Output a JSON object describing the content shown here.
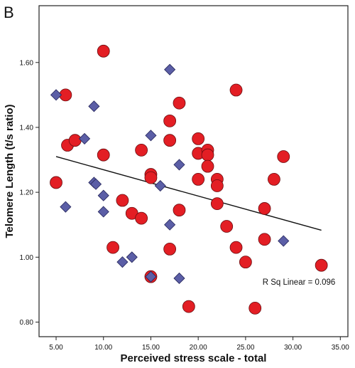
{
  "panel_label": "B",
  "chart_data": {
    "type": "scatter",
    "title": "",
    "xlabel": "Perceived stress scale - total",
    "ylabel": "Telomere Length (t/s ratio)",
    "xlim": [
      3.2,
      35.8
    ],
    "ylim": [
      0.755,
      1.775
    ],
    "x_ticks": [
      5,
      10,
      15,
      20,
      25,
      30,
      35
    ],
    "x_tick_labels": [
      "5.00",
      "10.00",
      "15.00",
      "20.00",
      "25.00",
      "30.00",
      "35.00"
    ],
    "y_ticks": [
      0.8,
      1.0,
      1.2,
      1.4,
      1.6
    ],
    "y_tick_labels": [
      "0.80",
      "1.00",
      "1.20",
      "1.40",
      "1.60"
    ],
    "grid": false,
    "legend": "none",
    "series": [
      {
        "marker": "circle",
        "color": "#e31e24",
        "points": [
          [
            5,
            1.23
          ],
          [
            6,
            1.5
          ],
          [
            6.2,
            1.345
          ],
          [
            7,
            1.36
          ],
          [
            10,
            1.635
          ],
          [
            10,
            1.315
          ],
          [
            11,
            1.03
          ],
          [
            12,
            1.175
          ],
          [
            13,
            1.135
          ],
          [
            14,
            1.33
          ],
          [
            14,
            1.12
          ],
          [
            15,
            1.255
          ],
          [
            15,
            1.245
          ],
          [
            15,
            0.94
          ],
          [
            17,
            1.42
          ],
          [
            17,
            1.36
          ],
          [
            17,
            1.025
          ],
          [
            18,
            1.475
          ],
          [
            18,
            1.145
          ],
          [
            19,
            0.848
          ],
          [
            20,
            1.365
          ],
          [
            20,
            1.32
          ],
          [
            20,
            1.24
          ],
          [
            21,
            1.33
          ],
          [
            21,
            1.315
          ],
          [
            21,
            1.28
          ],
          [
            22,
            1.24
          ],
          [
            22,
            1.22
          ],
          [
            22,
            1.165
          ],
          [
            23,
            1.095
          ],
          [
            24,
            1.515
          ],
          [
            24,
            1.03
          ],
          [
            25,
            0.985
          ],
          [
            26,
            0.843
          ],
          [
            27,
            1.15
          ],
          [
            27,
            1.055
          ],
          [
            28,
            1.24
          ],
          [
            29,
            1.31
          ],
          [
            33,
            0.975
          ]
        ]
      },
      {
        "marker": "diamond",
        "color": "#5b5ea6",
        "points": [
          [
            5,
            1.5
          ],
          [
            6,
            1.155
          ],
          [
            8,
            1.365
          ],
          [
            9,
            1.465
          ],
          [
            9,
            1.23
          ],
          [
            9.2,
            1.225
          ],
          [
            10,
            1.19
          ],
          [
            10,
            1.14
          ],
          [
            12,
            0.985
          ],
          [
            13,
            1.0
          ],
          [
            15,
            1.375
          ],
          [
            15,
            0.94
          ],
          [
            16,
            1.22
          ],
          [
            17,
            1.578
          ],
          [
            17,
            1.1
          ],
          [
            18,
            1.285
          ],
          [
            18,
            0.935
          ],
          [
            29,
            1.05
          ]
        ]
      }
    ],
    "fit_line": {
      "type": "linear",
      "x": [
        5,
        33
      ],
      "y": [
        1.31,
        1.083
      ]
    },
    "annotation": "R Sq Linear = 0.096"
  }
}
